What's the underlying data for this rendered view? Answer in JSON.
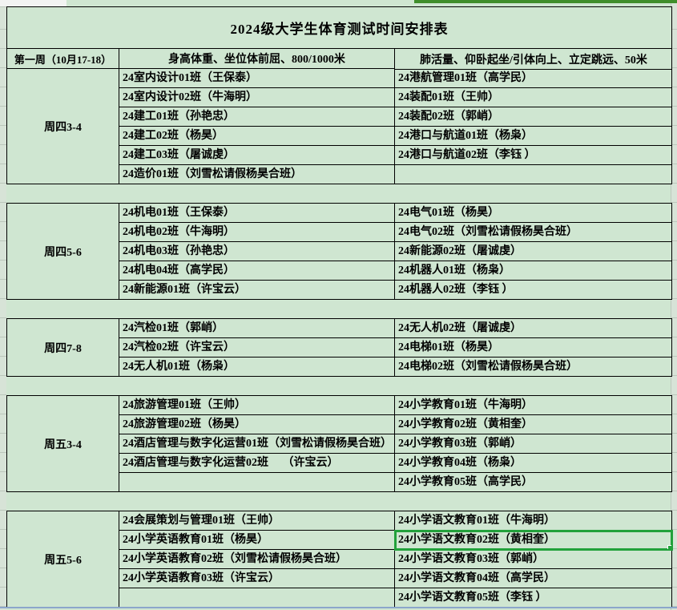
{
  "title": "2024级大学生体育测试时间安排表",
  "header": {
    "week": "第一周（10月17-18）",
    "col_a": "身高体重、坐位体前屈、800/1000米",
    "col_b": "肺活量、仰卧起坐/引体向上、立定跳远、50米"
  },
  "sections": [
    {
      "time": "周四3-4",
      "rows": [
        [
          "24室内设计01班（王保泰）",
          "24港航管理01班（高学民）"
        ],
        [
          "24室内设计02班（牛海明）",
          "24装配01班（王帅）"
        ],
        [
          "24建工01班（孙艳忠）",
          "24装配02班（郭峭）"
        ],
        [
          "24建工02班（杨昊）",
          "24港口与航道01班（杨枭）"
        ],
        [
          "24建工03班（屠诚虔）",
          "24港口与航道02班（李钰 ）"
        ],
        [
          "24造价01班（刘雪松请假杨昊合班）",
          ""
        ]
      ]
    },
    {
      "time": "周四5-6",
      "rows": [
        [
          "24机电01班（王保泰）",
          "24电气01班（杨昊）"
        ],
        [
          "24机电02班（牛海明）",
          "24电气02班（刘雪松请假杨昊合班）"
        ],
        [
          "24机电03班（孙艳忠）",
          "24新能源02班（屠诚虔）"
        ],
        [
          "24机电04班（高学民）",
          "24机器人01班（杨枭）"
        ],
        [
          "24新能源01班（许宝云）",
          "24机器人02班（李钰 ）"
        ]
      ]
    },
    {
      "time": "周四7-8",
      "rows": [
        [
          "24汽检01班（郭峭）",
          "24无人机02班（屠诚虔）"
        ],
        [
          "24汽检02班（许宝云）",
          "24电梯01班（杨昊）"
        ],
        [
          "24无人机01班（杨枭）",
          "24电梯02班（刘雪松请假杨昊合班）"
        ]
      ]
    },
    {
      "time": "周五3-4",
      "rows": [
        [
          "24旅游管理01班（王帅）",
          "24小学教育01班（牛海明）"
        ],
        [
          "24旅游管理02班（杨昊）",
          "24小学教育02班（黄相奎）"
        ],
        [
          "24酒店管理与数字化运营01班（刘雪松请假杨昊合班）",
          "24小学教育03班（郭峭）"
        ],
        [
          "24酒店管理与数字化运营02班　 （许宝云）",
          "24小学教育04班（杨枭）"
        ],
        [
          "",
          "24小学教育05班（高学民）"
        ]
      ]
    },
    {
      "time": "周五5-6",
      "rows": [
        [
          "24会展策划与管理01班（王帅）",
          "24小学语文教育01班（牛海明）"
        ],
        [
          "24小学英语教育01班（杨昊）",
          "24小学语文教育02班（黄相奎）"
        ],
        [
          "24小学英语教育02班（刘雪松请假杨昊合班）",
          "24小学语文教育03班（郭峭）"
        ],
        [
          "24小学英语教育03班（许宝云）",
          "24小学语文教育04班（高学民）"
        ],
        [
          "",
          "24小学语文教育05班（李钰 ）"
        ]
      ]
    }
  ],
  "selected_cell": {
    "section_index": 4,
    "row_index": 1,
    "col_index": 1
  },
  "colors": {
    "cell_fill": "#cfe6d1",
    "border": "#000000",
    "selection": "#22a13b",
    "top_strip": "#3f8e2b",
    "gutter": "#d7e3d7",
    "gridline": "#bcc7bc",
    "bottom_line": "#8ba6cb"
  }
}
